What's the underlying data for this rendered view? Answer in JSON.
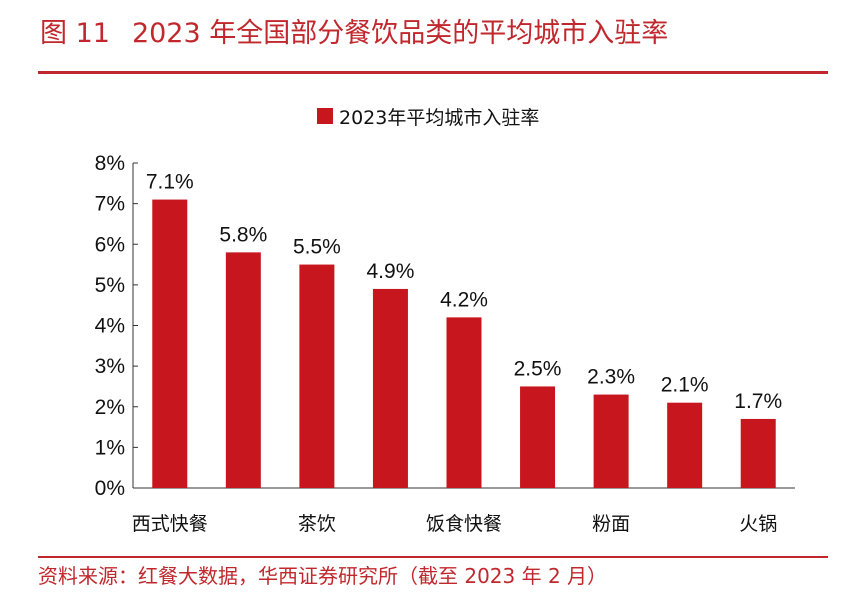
{
  "figure": {
    "number": "图 11",
    "title": "2023 年全国部分餐饮品类的平均城市入驻率",
    "source": "资料来源：红餐大数据，华西证券研究所（截至 2023 年 2 月）"
  },
  "colors": {
    "accent": "#c0282d",
    "bar": "#c8161e"
  },
  "chart_data": {
    "type": "bar",
    "categories": [
      "西式快餐",
      "",
      "茶饮",
      "",
      "饭食快餐",
      "",
      "粉面",
      "",
      "火锅"
    ],
    "series": [
      {
        "name": "2023年平均城市入驻率",
        "values": [
          7.1,
          5.8,
          5.5,
          4.9,
          4.2,
          2.5,
          2.3,
          2.1,
          1.7
        ]
      }
    ],
    "data_labels": [
      "7.1%",
      "5.8%",
      "5.5%",
      "4.9%",
      "4.2%",
      "2.5%",
      "2.3%",
      "2.1%",
      "1.7%"
    ],
    "y_ticks": [
      "0%",
      "1%",
      "2%",
      "3%",
      "4%",
      "5%",
      "6%",
      "7%",
      "8%"
    ],
    "ylim": [
      0,
      8
    ],
    "legend_position": "top-center",
    "grid": false
  }
}
